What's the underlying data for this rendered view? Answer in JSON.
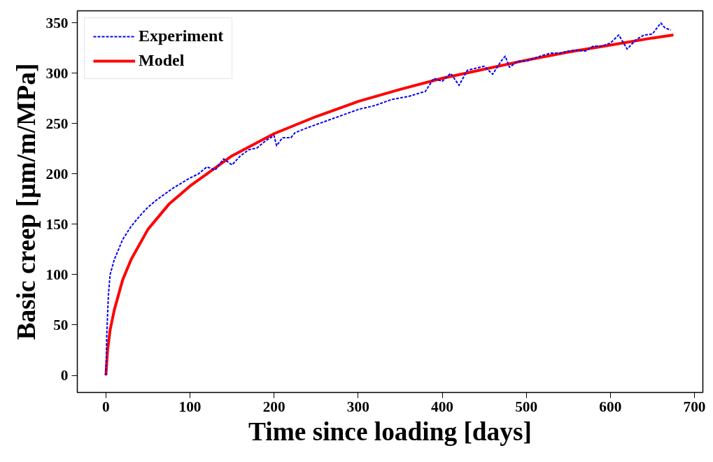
{
  "chart_data": {
    "type": "line",
    "xlabel": "Time since loading [days]",
    "ylabel": "Basic creep [μm/m/MPa]",
    "xlim": [
      -34,
      710
    ],
    "ylim": [
      -17,
      362
    ],
    "xticks": [
      0,
      100,
      200,
      300,
      400,
      500,
      600,
      700
    ],
    "yticks": [
      0,
      50,
      100,
      150,
      200,
      250,
      300,
      350
    ],
    "grid": false,
    "legend": "top left",
    "series": [
      {
        "name": "Experiment",
        "color": "#0000ff",
        "line_style": "dashed",
        "x": [
          0,
          1,
          3,
          5,
          10,
          20,
          30,
          40,
          50,
          60,
          80,
          100,
          110,
          120,
          130,
          140,
          150,
          160,
          170,
          180,
          190,
          200,
          203,
          210,
          220,
          225,
          240,
          260,
          280,
          300,
          320,
          340,
          360,
          380,
          390,
          400,
          410,
          420,
          430,
          440,
          450,
          460,
          470,
          475,
          480,
          490,
          500,
          510,
          520,
          530,
          540,
          550,
          560,
          570,
          580,
          590,
          600,
          610,
          620,
          630,
          640,
          650,
          660,
          665,
          672
        ],
        "values": [
          0,
          40,
          80,
          100,
          115,
          135,
          148,
          158,
          167,
          174,
          186,
          196,
          200,
          207,
          204,
          215,
          209,
          218,
          224,
          226,
          233,
          238,
          228,
          236,
          236,
          241,
          246,
          252,
          258,
          264,
          268,
          274,
          277,
          282,
          295,
          292,
          300,
          288,
          303,
          305,
          307,
          299,
          312,
          317,
          306,
          312,
          312,
          315,
          318,
          320,
          320,
          322,
          323,
          322,
          327,
          327,
          330,
          338,
          324,
          333,
          338,
          339,
          350,
          345,
          343
        ]
      },
      {
        "name": "Model",
        "color": "#ff0000",
        "line_style": "solid",
        "x": [
          0,
          2,
          5,
          10,
          20,
          30,
          50,
          75,
          100,
          150,
          200,
          250,
          300,
          350,
          400,
          450,
          500,
          550,
          600,
          650,
          675
        ],
        "values": [
          0,
          25,
          45,
          65,
          95,
          115,
          145,
          170,
          188,
          218,
          240,
          257,
          272,
          284,
          295,
          304,
          313,
          321,
          328,
          335,
          338
        ]
      }
    ]
  }
}
